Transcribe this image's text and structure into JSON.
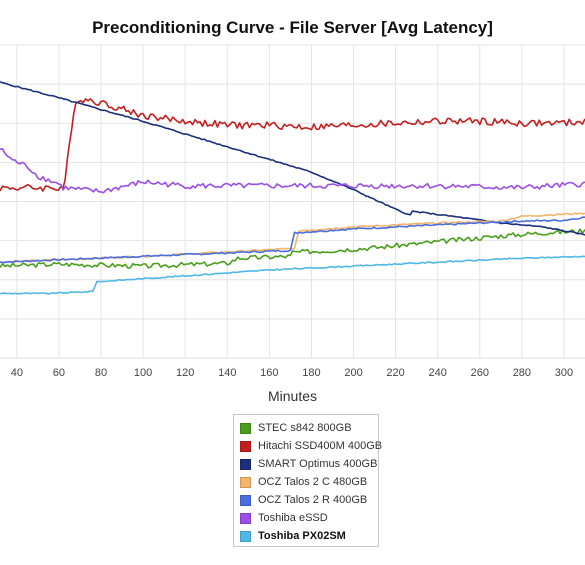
{
  "chart_data": {
    "type": "line",
    "title": "Preconditioning Curve - File Server [Avg Latency]",
    "xlabel": "Minutes",
    "ylabel": "",
    "xlim": [
      32,
      310
    ],
    "ylim": [
      0,
      8
    ],
    "x_ticks": [
      40,
      60,
      80,
      100,
      120,
      140,
      160,
      180,
      200,
      220,
      240,
      260,
      280,
      300
    ],
    "grid": true,
    "legend_position": "bottom",
    "series": [
      {
        "name": "STEC s842 800GB",
        "color": "#4a9e1c",
        "x": [
          32,
          60,
          100,
          140,
          145,
          170,
          171,
          190,
          210,
          230,
          250,
          270,
          290,
          310
        ],
        "y": [
          2.35,
          2.4,
          2.35,
          2.42,
          2.55,
          2.6,
          2.7,
          2.75,
          2.82,
          2.92,
          3.02,
          3.12,
          3.2,
          3.25
        ]
      },
      {
        "name": "Hitachi SSD400M 400GB",
        "color": "#c41f1f",
        "x": [
          32,
          62,
          63,
          66,
          68,
          75,
          85,
          100,
          120,
          140,
          160,
          180,
          200,
          220,
          240,
          260,
          280,
          300,
          310
        ],
        "y": [
          4.35,
          4.35,
          4.6,
          5.8,
          6.6,
          6.6,
          6.45,
          6.2,
          6.05,
          5.95,
          5.95,
          5.9,
          5.95,
          6.0,
          6.05,
          6.05,
          6.0,
          6.0,
          6.05
        ]
      },
      {
        "name": "SMART Optimus 400GB",
        "color": "#1c2f7c",
        "x": [
          32,
          60,
          100,
          140,
          180,
          200,
          220,
          227,
          228,
          250,
          270,
          290,
          310
        ],
        "y": [
          7.05,
          6.65,
          6.05,
          5.4,
          4.75,
          4.3,
          3.8,
          3.65,
          3.75,
          3.6,
          3.45,
          3.35,
          3.15
        ]
      },
      {
        "name": "OCZ Talos 2 C 480GB",
        "color": "#f2b36b",
        "x": [
          32,
          100,
          172,
          174,
          200,
          240,
          270,
          280,
          290,
          310
        ],
        "y": [
          2.45,
          2.6,
          2.8,
          3.25,
          3.35,
          3.45,
          3.5,
          3.62,
          3.65,
          3.7
        ]
      },
      {
        "name": "OCZ Talos 2 R 400GB",
        "color": "#4a6ee0",
        "x": [
          32,
          100,
          170,
          172,
          200,
          240,
          280,
          300,
          310
        ],
        "y": [
          2.45,
          2.6,
          2.75,
          3.2,
          3.3,
          3.4,
          3.5,
          3.52,
          3.6
        ]
      },
      {
        "name": "Toshiba eSSD",
        "color": "#9b4de8",
        "x": [
          32,
          38,
          45,
          50,
          60,
          62,
          80,
          100,
          120,
          160,
          200,
          240,
          280,
          310
        ],
        "y": [
          5.35,
          5.05,
          4.9,
          4.65,
          4.45,
          4.35,
          4.25,
          4.5,
          4.4,
          4.4,
          4.4,
          4.4,
          4.35,
          4.45
        ]
      },
      {
        "name": "Toshiba PX02SM",
        "color": "#4fb8e6",
        "x": [
          32,
          55,
          76,
          78,
          120,
          160,
          200,
          240,
          280,
          310
        ],
        "y": [
          1.65,
          1.65,
          1.7,
          1.95,
          2.1,
          2.25,
          2.35,
          2.45,
          2.55,
          2.6
        ]
      }
    ]
  }
}
